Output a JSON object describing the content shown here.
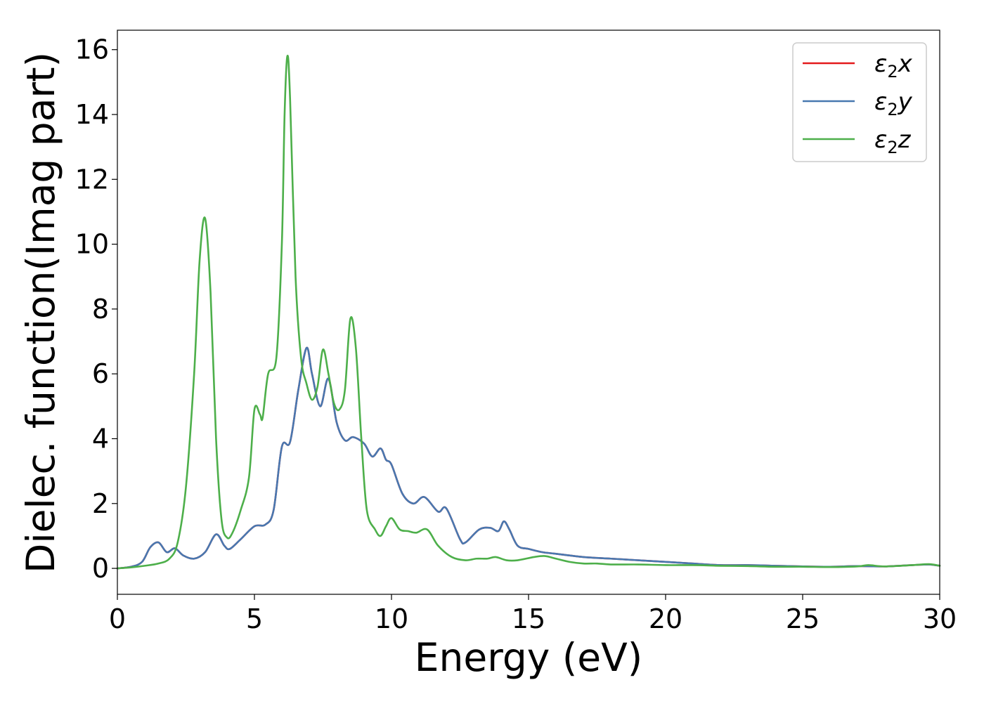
{
  "chart_data": {
    "type": "line",
    "title": "",
    "xlabel": "Energy (eV)",
    "ylabel": "Dielec. function(Imag part)",
    "xlim": [
      0,
      30
    ],
    "ylim": [
      -0.8,
      16.6
    ],
    "x_ticks": [
      0,
      5,
      10,
      15,
      20,
      25,
      30
    ],
    "y_ticks": [
      0,
      2,
      4,
      6,
      8,
      10,
      12,
      14,
      16
    ],
    "x_tick_labels": [
      "0",
      "5",
      "10",
      "15",
      "20",
      "25",
      "30"
    ],
    "y_tick_labels": [
      "0",
      "2",
      "4",
      "6",
      "8",
      "10",
      "12",
      "14",
      "16"
    ],
    "grid": false,
    "legend_position": "top-right",
    "series": [
      {
        "name": "ε2x",
        "label_main": "ε",
        "label_sub": "2",
        "label_suffix": "x",
        "color": "#e41a1c",
        "points": [
          [
            0,
            0.0
          ],
          [
            0.5,
            0.05
          ],
          [
            0.9,
            0.2
          ],
          [
            1.2,
            0.65
          ],
          [
            1.5,
            0.8
          ],
          [
            1.8,
            0.5
          ],
          [
            2.1,
            0.62
          ],
          [
            2.4,
            0.4
          ],
          [
            2.8,
            0.3
          ],
          [
            3.2,
            0.5
          ],
          [
            3.6,
            1.05
          ],
          [
            3.9,
            0.7
          ],
          [
            4.1,
            0.6
          ],
          [
            4.5,
            0.9
          ],
          [
            5.0,
            1.3
          ],
          [
            5.4,
            1.35
          ],
          [
            5.7,
            1.8
          ],
          [
            6.0,
            3.75
          ],
          [
            6.3,
            3.9
          ],
          [
            6.6,
            5.5
          ],
          [
            6.9,
            6.8
          ],
          [
            7.1,
            6.0
          ],
          [
            7.4,
            5.0
          ],
          [
            7.7,
            5.85
          ],
          [
            8.0,
            4.5
          ],
          [
            8.3,
            3.95
          ],
          [
            8.6,
            4.05
          ],
          [
            9.0,
            3.85
          ],
          [
            9.3,
            3.45
          ],
          [
            9.6,
            3.7
          ],
          [
            9.8,
            3.35
          ],
          [
            10.0,
            3.2
          ],
          [
            10.4,
            2.3
          ],
          [
            10.8,
            2.0
          ],
          [
            11.2,
            2.2
          ],
          [
            11.7,
            1.75
          ],
          [
            12.0,
            1.85
          ],
          [
            12.5,
            0.9
          ],
          [
            12.7,
            0.8
          ],
          [
            13.2,
            1.2
          ],
          [
            13.6,
            1.25
          ],
          [
            13.9,
            1.15
          ],
          [
            14.1,
            1.45
          ],
          [
            14.3,
            1.2
          ],
          [
            14.6,
            0.7
          ],
          [
            15.0,
            0.6
          ],
          [
            15.5,
            0.5
          ],
          [
            16.0,
            0.45
          ],
          [
            17.0,
            0.35
          ],
          [
            18.0,
            0.3
          ],
          [
            19.0,
            0.25
          ],
          [
            20.0,
            0.2
          ],
          [
            21.0,
            0.15
          ],
          [
            22.0,
            0.1
          ],
          [
            23.0,
            0.1
          ],
          [
            24.0,
            0.08
          ],
          [
            25.0,
            0.06
          ],
          [
            26.0,
            0.05
          ],
          [
            27.0,
            0.07
          ],
          [
            28.0,
            0.06
          ],
          [
            29.0,
            0.1
          ],
          [
            29.6,
            0.12
          ],
          [
            30.0,
            0.08
          ]
        ]
      },
      {
        "name": "ε2y",
        "label_main": "ε",
        "label_sub": "2",
        "label_suffix": "y",
        "color": "#4878b0",
        "points": [
          [
            0,
            0.0
          ],
          [
            0.5,
            0.05
          ],
          [
            0.9,
            0.2
          ],
          [
            1.2,
            0.65
          ],
          [
            1.5,
            0.8
          ],
          [
            1.8,
            0.5
          ],
          [
            2.1,
            0.62
          ],
          [
            2.4,
            0.4
          ],
          [
            2.8,
            0.3
          ],
          [
            3.2,
            0.5
          ],
          [
            3.6,
            1.05
          ],
          [
            3.9,
            0.7
          ],
          [
            4.1,
            0.6
          ],
          [
            4.5,
            0.9
          ],
          [
            5.0,
            1.3
          ],
          [
            5.4,
            1.35
          ],
          [
            5.7,
            1.8
          ],
          [
            6.0,
            3.75
          ],
          [
            6.3,
            3.9
          ],
          [
            6.6,
            5.5
          ],
          [
            6.9,
            6.8
          ],
          [
            7.1,
            6.0
          ],
          [
            7.4,
            5.0
          ],
          [
            7.7,
            5.85
          ],
          [
            8.0,
            4.5
          ],
          [
            8.3,
            3.95
          ],
          [
            8.6,
            4.05
          ],
          [
            9.0,
            3.85
          ],
          [
            9.3,
            3.45
          ],
          [
            9.6,
            3.7
          ],
          [
            9.8,
            3.35
          ],
          [
            10.0,
            3.2
          ],
          [
            10.4,
            2.3
          ],
          [
            10.8,
            2.0
          ],
          [
            11.2,
            2.2
          ],
          [
            11.7,
            1.75
          ],
          [
            12.0,
            1.85
          ],
          [
            12.5,
            0.9
          ],
          [
            12.7,
            0.8
          ],
          [
            13.2,
            1.2
          ],
          [
            13.6,
            1.25
          ],
          [
            13.9,
            1.15
          ],
          [
            14.1,
            1.45
          ],
          [
            14.3,
            1.2
          ],
          [
            14.6,
            0.7
          ],
          [
            15.0,
            0.6
          ],
          [
            15.5,
            0.5
          ],
          [
            16.0,
            0.45
          ],
          [
            17.0,
            0.35
          ],
          [
            18.0,
            0.3
          ],
          [
            19.0,
            0.25
          ],
          [
            20.0,
            0.2
          ],
          [
            21.0,
            0.15
          ],
          [
            22.0,
            0.1
          ],
          [
            23.0,
            0.1
          ],
          [
            24.0,
            0.08
          ],
          [
            25.0,
            0.06
          ],
          [
            26.0,
            0.05
          ],
          [
            27.0,
            0.07
          ],
          [
            28.0,
            0.06
          ],
          [
            29.0,
            0.1
          ],
          [
            29.6,
            0.12
          ],
          [
            30.0,
            0.08
          ]
        ]
      },
      {
        "name": "ε2z",
        "label_main": "ε",
        "label_sub": "2",
        "label_suffix": "z",
        "color": "#4daf4a",
        "points": [
          [
            0,
            0.0
          ],
          [
            0.5,
            0.03
          ],
          [
            1.0,
            0.08
          ],
          [
            1.5,
            0.15
          ],
          [
            1.9,
            0.3
          ],
          [
            2.2,
            0.8
          ],
          [
            2.5,
            2.5
          ],
          [
            2.8,
            6.0
          ],
          [
            3.0,
            9.5
          ],
          [
            3.2,
            10.8
          ],
          [
            3.4,
            8.5
          ],
          [
            3.6,
            4.0
          ],
          [
            3.8,
            1.5
          ],
          [
            4.0,
            0.95
          ],
          [
            4.2,
            1.1
          ],
          [
            4.5,
            1.8
          ],
          [
            4.8,
            2.8
          ],
          [
            5.0,
            4.9
          ],
          [
            5.2,
            4.75
          ],
          [
            5.3,
            4.65
          ],
          [
            5.5,
            6.0
          ],
          [
            5.8,
            6.5
          ],
          [
            6.0,
            10.0
          ],
          [
            6.1,
            14.0
          ],
          [
            6.2,
            15.8
          ],
          [
            6.3,
            14.5
          ],
          [
            6.5,
            9.0
          ],
          [
            6.7,
            6.5
          ],
          [
            6.9,
            5.7
          ],
          [
            7.1,
            5.2
          ],
          [
            7.3,
            5.6
          ],
          [
            7.5,
            6.75
          ],
          [
            7.7,
            6.0
          ],
          [
            7.9,
            5.1
          ],
          [
            8.1,
            4.9
          ],
          [
            8.3,
            5.5
          ],
          [
            8.5,
            7.7
          ],
          [
            8.7,
            6.8
          ],
          [
            8.9,
            4.0
          ],
          [
            9.1,
            1.8
          ],
          [
            9.4,
            1.2
          ],
          [
            9.6,
            1.0
          ],
          [
            9.8,
            1.3
          ],
          [
            10.0,
            1.55
          ],
          [
            10.3,
            1.2
          ],
          [
            10.6,
            1.15
          ],
          [
            10.9,
            1.1
          ],
          [
            11.3,
            1.2
          ],
          [
            11.7,
            0.7
          ],
          [
            12.2,
            0.35
          ],
          [
            12.7,
            0.25
          ],
          [
            13.1,
            0.3
          ],
          [
            13.5,
            0.3
          ],
          [
            13.8,
            0.35
          ],
          [
            14.2,
            0.25
          ],
          [
            14.6,
            0.25
          ],
          [
            15.2,
            0.35
          ],
          [
            15.6,
            0.38
          ],
          [
            16.0,
            0.3
          ],
          [
            16.5,
            0.2
          ],
          [
            17.0,
            0.15
          ],
          [
            17.5,
            0.15
          ],
          [
            18.0,
            0.12
          ],
          [
            19.0,
            0.12
          ],
          [
            20.0,
            0.1
          ],
          [
            21.0,
            0.1
          ],
          [
            22.0,
            0.08
          ],
          [
            23.0,
            0.07
          ],
          [
            24.0,
            0.05
          ],
          [
            25.0,
            0.05
          ],
          [
            26.0,
            0.04
          ],
          [
            27.0,
            0.06
          ],
          [
            27.4,
            0.1
          ],
          [
            28.0,
            0.06
          ],
          [
            29.0,
            0.1
          ],
          [
            29.6,
            0.13
          ],
          [
            30.0,
            0.08
          ]
        ]
      }
    ]
  }
}
